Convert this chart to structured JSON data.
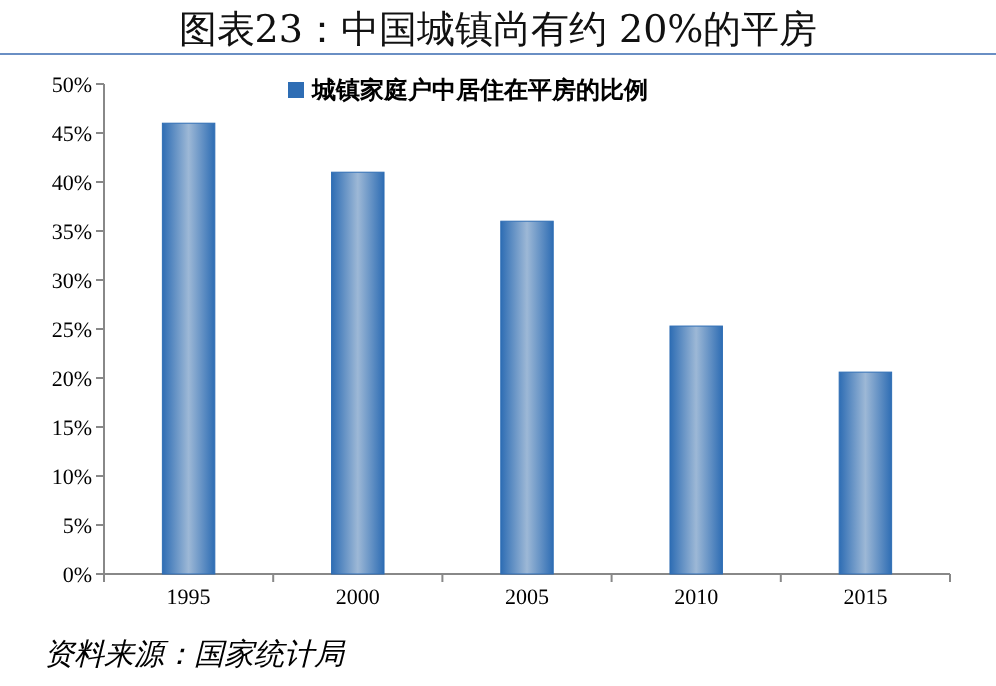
{
  "chart_data": {
    "type": "bar",
    "title": "图表23：中国城镇尚有约 20%的平房",
    "categories": [
      "1995",
      "2000",
      "2005",
      "2010",
      "2015"
    ],
    "series": [
      {
        "name": "城镇家庭户中居住在平房的比例",
        "color": "#2e6db4",
        "values": [
          46,
          41,
          36,
          25.3,
          20.6
        ]
      }
    ],
    "ylim": [
      0,
      50
    ],
    "yticks": [
      {
        "value": 0,
        "label": "0%"
      },
      {
        "value": 5,
        "label": "5%"
      },
      {
        "value": 10,
        "label": "10%"
      },
      {
        "value": 15,
        "label": "15%"
      },
      {
        "value": 20,
        "label": "20%"
      },
      {
        "value": 25,
        "label": "25%"
      },
      {
        "value": 30,
        "label": "30%"
      },
      {
        "value": 35,
        "label": "35%"
      },
      {
        "value": 40,
        "label": "40%"
      },
      {
        "value": 45,
        "label": "45%"
      },
      {
        "value": 50,
        "label": "50%"
      }
    ],
    "legend": "top",
    "annotations": [
      "资料来源：国家统计局"
    ]
  }
}
